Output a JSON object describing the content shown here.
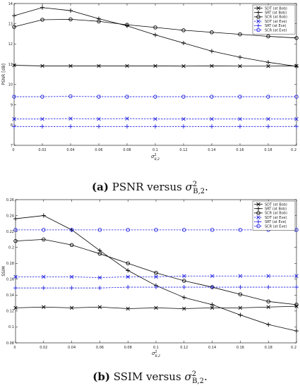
{
  "captions": [
    {
      "tag": "(a)",
      "text": "PSNR versus",
      "sym": "σ",
      "sup": "2",
      "sub": "B,2",
      "end": "."
    },
    {
      "tag": "(b)",
      "text": "SSIM versus",
      "sym": "σ",
      "sup": "2",
      "sub": "B,2",
      "end": "."
    }
  ],
  "chart_data": [
    {
      "type": "line",
      "ylabel": "PSNR [dB]",
      "xlabel_sym": "σ",
      "xlabel_sup": "2",
      "xlabel_sub": "B,2",
      "xlim": [
        0,
        0.2
      ],
      "ylim": [
        7,
        14
      ],
      "xticks": [
        "0",
        "0.02",
        "0.04",
        "0.06",
        "0.08",
        "0.1",
        "0.12",
        "0.14",
        "0.16",
        "0.18",
        "0.2"
      ],
      "yticks": [
        "7",
        "8",
        "9",
        "10",
        "11",
        "12",
        "13",
        "14"
      ],
      "grid": false,
      "legend_position": "top-right",
      "x": [
        0,
        0.02,
        0.04,
        0.06,
        0.08,
        0.1,
        0.12,
        0.14,
        0.16,
        0.18,
        0.2
      ],
      "series": [
        {
          "name": "SDT (at Bob)",
          "color": "#000000",
          "dash": "solid",
          "marker": "x",
          "values": [
            10.95,
            10.92,
            10.92,
            10.92,
            10.92,
            10.92,
            10.91,
            10.92,
            10.91,
            10.91,
            10.92
          ]
        },
        {
          "name": "SRT (at Bob)",
          "color": "#000000",
          "dash": "solid",
          "marker": "plus",
          "values": [
            13.4,
            13.8,
            13.65,
            13.25,
            12.9,
            12.45,
            12.05,
            11.65,
            11.35,
            11.1,
            10.9
          ]
        },
        {
          "name": "SCR (at Bob)",
          "color": "#000000",
          "dash": "solid",
          "marker": "circle",
          "values": [
            12.85,
            13.2,
            13.22,
            13.12,
            12.95,
            12.82,
            12.68,
            12.58,
            12.48,
            12.38,
            12.3
          ]
        },
        {
          "name": "SDT (at Eve)",
          "color": "#1f1fe0",
          "dash": "dashed",
          "marker": "x",
          "values": [
            8.3,
            8.3,
            8.32,
            8.3,
            8.32,
            8.3,
            8.3,
            8.3,
            8.3,
            8.3,
            8.3
          ]
        },
        {
          "name": "SRT (at Eve)",
          "color": "#1f1fe0",
          "dash": "dashed",
          "marker": "plus",
          "values": [
            7.93,
            7.93,
            7.93,
            7.93,
            7.93,
            7.93,
            7.93,
            7.93,
            7.93,
            7.93,
            7.93
          ]
        },
        {
          "name": "SCR (at Eve)",
          "color": "#1f1fe0",
          "dash": "dashed",
          "marker": "circle",
          "values": [
            9.4,
            9.4,
            9.42,
            9.4,
            9.4,
            9.4,
            9.4,
            9.4,
            9.4,
            9.4,
            9.4
          ]
        }
      ]
    },
    {
      "type": "line",
      "ylabel": "SSIM",
      "xlabel_sym": "σ",
      "xlabel_sup": "2",
      "xlabel_sub": "B,2",
      "xlim": [
        0,
        0.2
      ],
      "ylim": [
        0.08,
        0.26
      ],
      "xticks": [
        "0",
        "0.02",
        "0.04",
        "0.06",
        "0.08",
        "0.1",
        "0.12",
        "0.14",
        "0.16",
        "0.18",
        "0.2"
      ],
      "yticks": [
        "0.08",
        "0.1",
        "0.12",
        "0.14",
        "0.16",
        "0.18",
        "0.2",
        "0.22",
        "0.24",
        "0.26"
      ],
      "grid": false,
      "legend_position": "top-right",
      "x": [
        0,
        0.02,
        0.04,
        0.06,
        0.08,
        0.1,
        0.12,
        0.14,
        0.16,
        0.18,
        0.2
      ],
      "series": [
        {
          "name": "SDT (at Bob)",
          "color": "#000000",
          "dash": "solid",
          "marker": "x",
          "values": [
            0.124,
            0.125,
            0.124,
            0.125,
            0.123,
            0.124,
            0.123,
            0.124,
            0.124,
            0.125,
            0.126
          ]
        },
        {
          "name": "SRT (at Bob)",
          "color": "#000000",
          "dash": "solid",
          "marker": "plus",
          "values": [
            0.236,
            0.24,
            0.222,
            0.196,
            0.171,
            0.152,
            0.137,
            0.128,
            0.115,
            0.103,
            0.095
          ]
        },
        {
          "name": "SCR (at Bob)",
          "color": "#000000",
          "dash": "solid",
          "marker": "circle",
          "values": [
            0.208,
            0.21,
            0.203,
            0.192,
            0.18,
            0.168,
            0.158,
            0.15,
            0.141,
            0.132,
            0.128
          ]
        },
        {
          "name": "SDT (at Eve)",
          "color": "#1f1fe0",
          "dash": "dashed",
          "marker": "x",
          "values": [
            0.163,
            0.163,
            0.163,
            0.162,
            0.163,
            0.163,
            0.164,
            0.164,
            0.164,
            0.164,
            0.164
          ]
        },
        {
          "name": "SRT (at Eve)",
          "color": "#1f1fe0",
          "dash": "dashed",
          "marker": "plus",
          "values": [
            0.149,
            0.149,
            0.149,
            0.149,
            0.15,
            0.15,
            0.15,
            0.15,
            0.15,
            0.15,
            0.15
          ]
        },
        {
          "name": "SCR (at Eve)",
          "color": "#1f1fe0",
          "dash": "dashed",
          "marker": "circle",
          "values": [
            0.222,
            0.222,
            0.222,
            0.222,
            0.222,
            0.222,
            0.222,
            0.222,
            0.222,
            0.222,
            0.222
          ]
        }
      ]
    }
  ]
}
